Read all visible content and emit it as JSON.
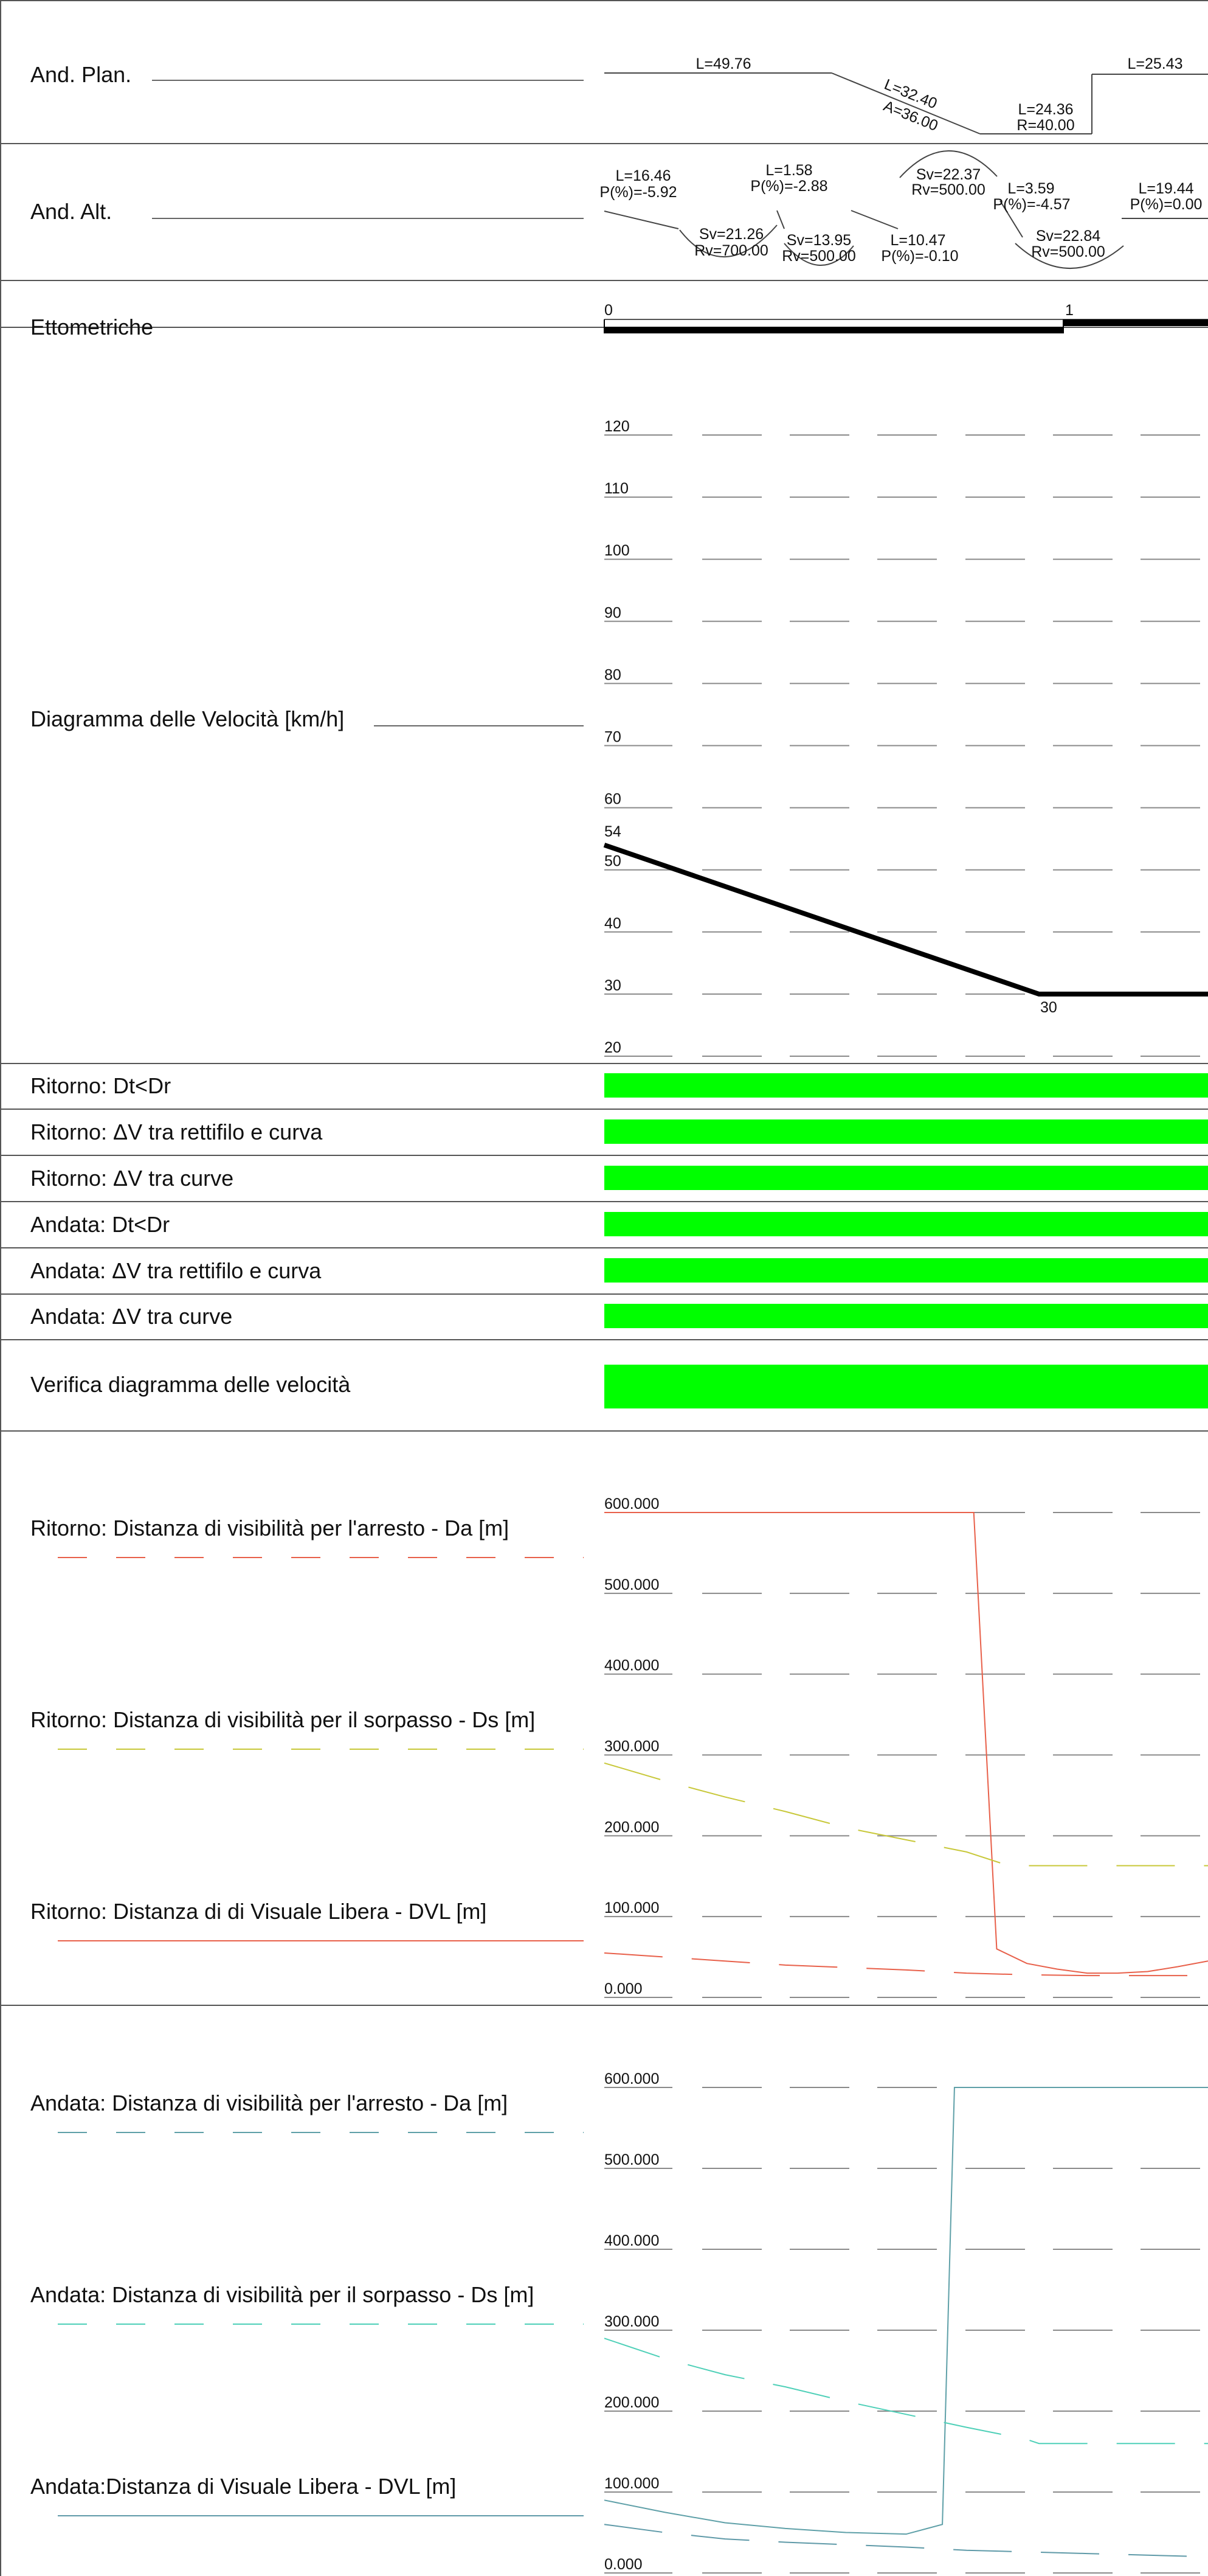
{
  "rows": {
    "and_plan": "And. Plan.",
    "and_alt": "And. Alt.",
    "ettometriche": "Ettometriche",
    "diagramma_velocita": "Diagramma delle Velocità [km/h]",
    "checks": [
      "Ritorno: Dt<Dr",
      "Ritorno: ΔV tra rettifilo e curva",
      "Ritorno: ΔV tra curve",
      "Andata: Dt<Dr",
      "Andata: ΔV tra rettifilo e curva",
      "Andata: ΔV tra curve"
    ],
    "verifica": "Verifica diagramma delle velocità",
    "ritorno_legend": [
      "Ritorno: Distanza di visibilità per l'arresto - Da [m]",
      "Ritorno: Distanza di visibilità per il sorpasso - Ds [m]",
      "Ritorno: Distanza di di Visuale Libera - DVL [m]"
    ],
    "andata_legend": [
      "Andata: Distanza di visibilità per l'arresto - Da [m]",
      "Andata: Distanza di visibilità per il sorpasso - Ds [m]",
      "Andata:Distanza di Visuale Libera - DVL [m]"
    ]
  },
  "plan_annotations": {
    "l1": "L=49.76",
    "l2": "L=32.40",
    "a2": "A=36.00",
    "l3": "L=24.36",
    "r3": "R=40.00",
    "l4": "L=25.43"
  },
  "alt_annotations": {
    "l1": "L=16.46",
    "p1": "P(%)=-5.92",
    "sv1": "Sv=21.26",
    "rv1": "Rv=700.00",
    "l2": "L=1.58",
    "p2": "P(%)=-2.88",
    "sv2": "Sv=13.95",
    "rv2": "Rv=500.00",
    "sv3": "Sv=22.37",
    "rv3": "Rv=500.00",
    "l3": "L=10.47",
    "p3": "P(%)=-0.10",
    "l4": "L=3.59",
    "p4": "P(%)=-4.57",
    "sv4": "Sv=22.84",
    "rv4": "Rv=500.00",
    "l5": "L=19.44",
    "p5": "P(%)=0.00"
  },
  "ettometric_ticks": [
    "0",
    "1"
  ],
  "colors": {
    "check_ok": "#00ff00",
    "speed_line": "#000000",
    "ritorno_da": "#e8604a",
    "ritorno_ds": "#c8c83a",
    "ritorno_dvl": "#e8604a",
    "andata_da": "#5fa0a8",
    "andata_ds": "#4fd0b8",
    "andata_dvl": "#5f9aa8",
    "grid": "#8a8a8a"
  },
  "chart_data": [
    {
      "type": "line",
      "title": "Diagramma delle Velocità [km/h]",
      "xlabel": "",
      "ylabel": "",
      "yticks": [
        "20",
        "30",
        "40",
        "50",
        "60",
        "70",
        "80",
        "90",
        "100",
        "110",
        "120"
      ],
      "ylim": [
        20,
        120
      ],
      "grid": true,
      "series": [
        {
          "x": [
            0,
            72,
            84,
            100
          ],
          "values": [
            54,
            30,
            30,
            30
          ],
          "labels": [
            "54",
            "30"
          ]
        }
      ]
    },
    {
      "type": "line",
      "title": "",
      "yticks": [
        "0.000",
        "100.000",
        "200.000",
        "300.000",
        "400.000",
        "500.000",
        "600.000"
      ],
      "ylim": [
        0,
        600
      ],
      "grid": true,
      "series": [
        {
          "name": "Ritorno: Distanza di visibilità per l'arresto - Da [m]",
          "x": [
            0,
            57.5,
            61.2,
            65,
            70,
            75,
            80,
            85,
            90,
            95,
            100
          ],
          "values": [
            600,
            600,
            600,
            60,
            42,
            35,
            30,
            30,
            32,
            38,
            45
          ]
        },
        {
          "name": "Ritorno: Distanza di visibilità per il sorpasso - Ds [m]",
          "x": [
            0,
            10,
            20,
            30,
            40,
            50,
            60,
            67,
            75,
            85,
            100
          ],
          "values": [
            290,
            268,
            248,
            230,
            210,
            195,
            180,
            163,
            163,
            163,
            163
          ]
        },
        {
          "name": "Ritorno: Distanza di di Visuale Libera - DVL [m]",
          "x": [
            0,
            10,
            20,
            30,
            40,
            50,
            60,
            70,
            80,
            90,
            100
          ],
          "values": [
            55,
            50,
            45,
            40,
            37,
            34,
            30,
            28,
            27,
            27,
            27
          ]
        }
      ]
    },
    {
      "type": "line",
      "title": "",
      "yticks": [
        "0.000",
        "100.000",
        "200.000",
        "300.000",
        "400.000",
        "500.000",
        "600.000"
      ],
      "ylim": [
        0,
        600
      ],
      "grid": true,
      "series": [
        {
          "name": "Andata: Distanza di visibilità per l'arresto - Da [m]",
          "x": [
            0,
            10,
            20,
            30,
            40,
            50,
            56,
            58,
            70,
            80,
            90,
            100
          ],
          "values": [
            90,
            75,
            62,
            55,
            50,
            48,
            60,
            600,
            600,
            600,
            600,
            600
          ]
        },
        {
          "name": "Andata: Distanza di visibilità per il sorpasso - Ds [m]",
          "x": [
            0,
            10,
            20,
            30,
            40,
            50,
            60,
            70,
            72,
            85,
            100
          ],
          "values": [
            290,
            265,
            245,
            230,
            212,
            196,
            180,
            165,
            160,
            160,
            160
          ]
        },
        {
          "name": "Andata:Distanza di Visuale Libera - DVL [m]",
          "x": [
            0,
            10,
            20,
            30,
            40,
            50,
            60,
            70,
            80,
            90,
            100
          ],
          "values": [
            60,
            50,
            42,
            38,
            35,
            32,
            28,
            26,
            24,
            22,
            20
          ]
        }
      ]
    }
  ]
}
